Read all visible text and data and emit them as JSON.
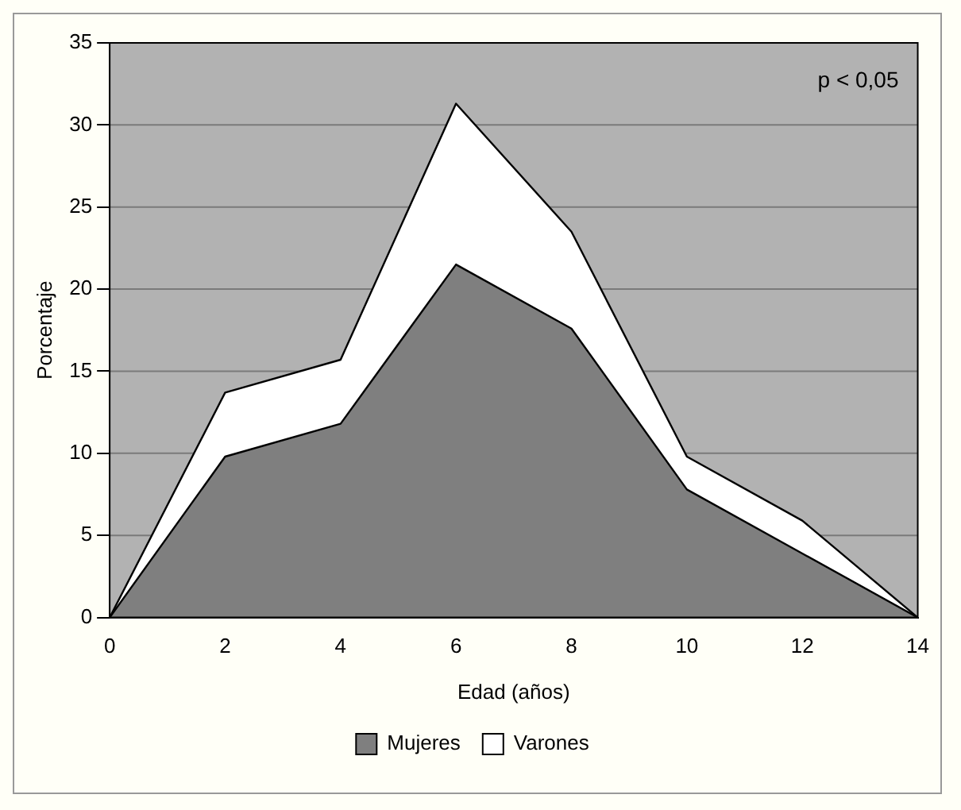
{
  "chart_data": {
    "type": "area",
    "xlabel": "Edad (años)",
    "ylabel": "Porcentaje",
    "x": [
      0,
      2,
      4,
      6,
      8,
      10,
      12,
      14
    ],
    "series": [
      {
        "name": "Mujeres",
        "color": "#7f7f7f",
        "values": [
          0,
          9.8,
          11.8,
          21.5,
          17.6,
          7.8,
          3.9,
          0
        ]
      },
      {
        "name": "Varones",
        "color": "#ffffff",
        "values": [
          0,
          13.7,
          15.7,
          31.3,
          23.5,
          9.8,
          5.9,
          0
        ]
      }
    ],
    "xlim": [
      0,
      14
    ],
    "xticks": [
      0,
      2,
      4,
      6,
      8,
      10,
      12,
      14
    ],
    "ylim": [
      0,
      35
    ],
    "yticks": [
      0,
      5,
      10,
      15,
      20,
      25,
      30,
      35
    ],
    "grid": "y",
    "legend": "bottom",
    "marker": "none",
    "line_style": "solid",
    "annotations": [
      "p < 0,05"
    ]
  }
}
